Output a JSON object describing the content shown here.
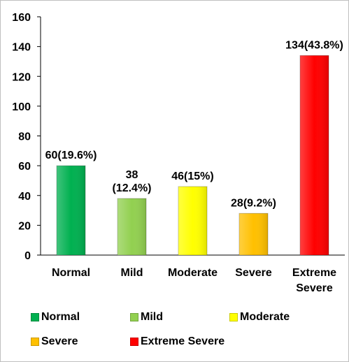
{
  "chart_data": {
    "type": "bar",
    "categories": [
      "Normal",
      "Mild",
      "Moderate",
      "Severe",
      "Extreme Severe"
    ],
    "category_lines": [
      [
        "Normal"
      ],
      [
        "Mild"
      ],
      [
        "Moderate"
      ],
      [
        "Severe"
      ],
      [
        "Extreme",
        "Severe"
      ]
    ],
    "values": [
      60,
      38,
      46,
      28,
      134
    ],
    "data_labels": [
      [
        "60(19.6%)"
      ],
      [
        "38",
        "(12.4%)"
      ],
      [
        "46(15%)"
      ],
      [
        "28(9.2%)"
      ],
      [
        "134(43.8%)"
      ]
    ],
    "colors": [
      "#00b050",
      "#92d050",
      "#ffff00",
      "#ffc000",
      "#ff0000"
    ],
    "ylim": [
      0,
      160
    ],
    "yticks": [
      0,
      20,
      40,
      60,
      80,
      100,
      120,
      140,
      160
    ],
    "grid": false,
    "legend_position": "bottom",
    "legend": [
      "Normal",
      "Mild",
      "Moderate",
      "Severe",
      "Extreme Severe"
    ],
    "title": "",
    "xlabel": "",
    "ylabel": ""
  }
}
